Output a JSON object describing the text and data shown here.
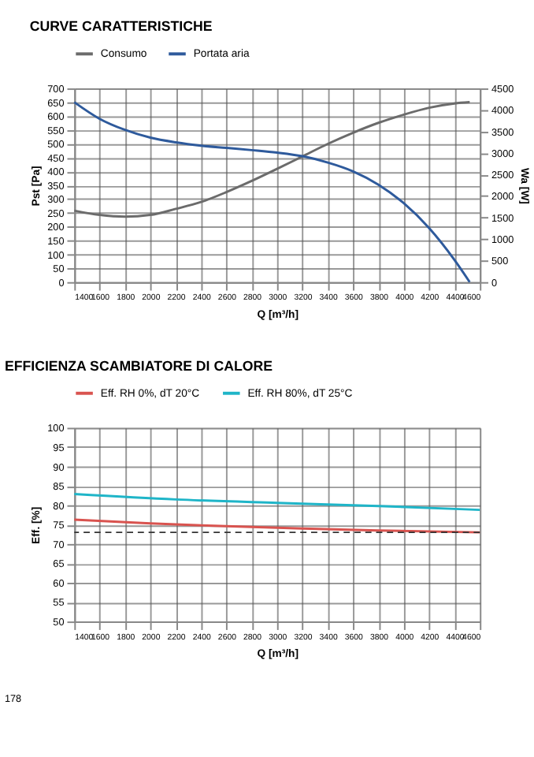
{
  "chart_data": [
    {
      "type": "line",
      "title": "CURVE CARATTERISTICHE",
      "xlabel": "Q [m³/h]",
      "ylabel": "Pst [Pa]",
      "y2label": "Wa [W]",
      "xlim": [
        1400,
        4600
      ],
      "xticks": [
        1400,
        1600,
        1800,
        2000,
        2200,
        2400,
        2600,
        2800,
        3000,
        3200,
        3400,
        3600,
        3800,
        4000,
        4200,
        4400,
        4600
      ],
      "ylim": [
        0,
        700
      ],
      "yticks": [
        0,
        50,
        100,
        150,
        200,
        250,
        300,
        350,
        400,
        450,
        500,
        550,
        600,
        650,
        700
      ],
      "y2lim": [
        0,
        4500
      ],
      "y2ticks": [
        0,
        500,
        1000,
        1500,
        2000,
        2500,
        3000,
        3500,
        4000,
        4500
      ],
      "grid": true,
      "legend": "top",
      "line_style": "solid",
      "series": [
        {
          "name": "Consumo",
          "color": "#6b6b6b",
          "axis": "y2",
          "x": [
            1400,
            1600,
            1800,
            2000,
            2200,
            2400,
            2600,
            2800,
            3000,
            3200,
            3400,
            3600,
            3800,
            4000,
            4200,
            4400,
            4520
          ],
          "values": [
            1660,
            1560,
            1520,
            1560,
            1700,
            1860,
            2090,
            2350,
            2630,
            2920,
            3210,
            3470,
            3700,
            3890,
            4050,
            4150,
            4180
          ]
        },
        {
          "name": "Portata aria",
          "color": "#2e5a9c",
          "axis": "y",
          "x": [
            1400,
            1600,
            1800,
            2000,
            2200,
            2400,
            2600,
            2800,
            3000,
            3200,
            3400,
            3600,
            3800,
            4000,
            4200,
            4400,
            4520
          ],
          "values": [
            650,
            590,
            550,
            522,
            505,
            493,
            485,
            477,
            468,
            455,
            432,
            400,
            352,
            285,
            195,
            80,
            0
          ]
        }
      ]
    },
    {
      "type": "line",
      "title": "EFFICIENZA SCAMBIATORE DI CALORE",
      "xlabel": "Q [m³/h]",
      "ylabel": "Eff. [%]",
      "xlim": [
        1400,
        4600
      ],
      "xticks": [
        1400,
        1600,
        1800,
        2000,
        2200,
        2400,
        2600,
        2800,
        3000,
        3200,
        3400,
        3600,
        3800,
        4000,
        4200,
        4400,
        4600
      ],
      "ylim": [
        50,
        100
      ],
      "yticks": [
        50,
        55,
        60,
        65,
        70,
        75,
        80,
        85,
        90,
        95,
        100
      ],
      "grid": true,
      "legend": "top",
      "line_style": "solid",
      "ref_lines": [
        {
          "axis": "y",
          "value": 73,
          "color": "#333333",
          "line_style": "dashed"
        }
      ],
      "annotations": [
        "178"
      ],
      "series": [
        {
          "name": "Eff. RH 0%, dT 20°C",
          "color": "#d9534f",
          "x": [
            1400,
            2000,
            2600,
            3200,
            3800,
            4600
          ],
          "values": [
            76.3,
            75.3,
            74.6,
            74.0,
            73.5,
            73.0
          ]
        },
        {
          "name": "Eff. RH 80%, dT 25°C",
          "color": "#1fb5c8",
          "x": [
            1400,
            2200,
            3000,
            3800,
            4600
          ],
          "values": [
            82.9,
            81.5,
            80.6,
            79.8,
            78.8
          ]
        }
      ]
    }
  ]
}
